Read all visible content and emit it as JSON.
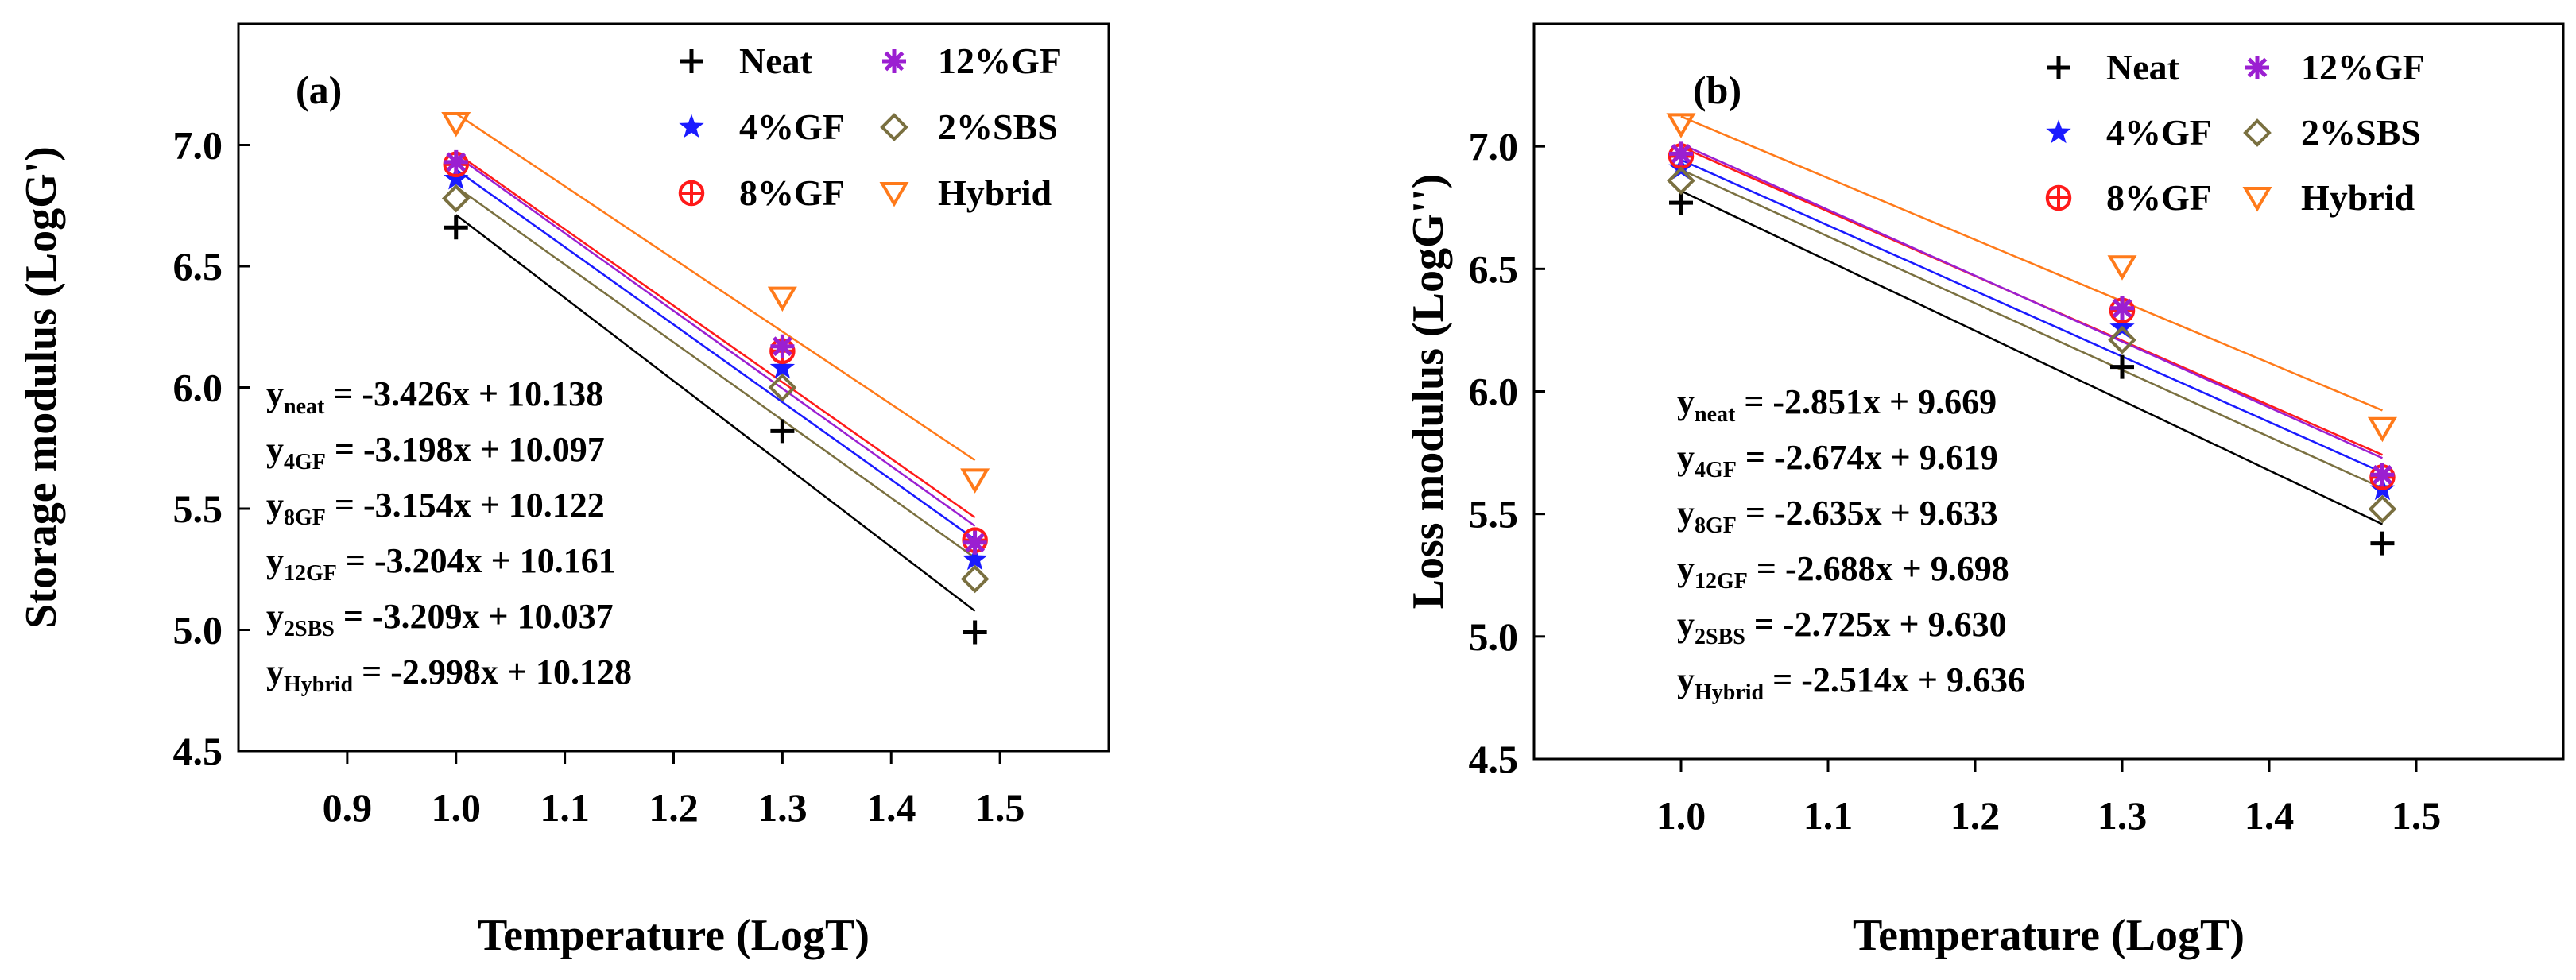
{
  "chart_data": [
    {
      "type": "scatter",
      "panel_label": "(a)",
      "xlabel": "Temperature (LogT)",
      "ylabel": "Storage modulus (LogG')",
      "xlim": [
        0.8,
        1.6
      ],
      "ylim": [
        4.5,
        7.5
      ],
      "xticks": [
        "0.9",
        "1.0",
        "1.1",
        "1.2",
        "1.3",
        "1.4",
        "1.5"
      ],
      "yticks": [
        "4.5",
        "5.0",
        "5.5",
        "6.0",
        "6.5",
        "7.0"
      ],
      "x": [
        1.0,
        1.3,
        1.477
      ],
      "legend_position": "top-right",
      "series": [
        {
          "name": "Neat",
          "marker": "plus",
          "color": "#000000",
          "line_color": "#000000",
          "values": [
            6.66,
            5.82,
            4.99
          ],
          "slope": -3.426,
          "intercept": 10.138
        },
        {
          "name": "4%GF",
          "marker": "star",
          "color": "#1a1aff",
          "line_color": "#1a1aff",
          "values": [
            6.86,
            6.08,
            5.29
          ],
          "slope": -3.198,
          "intercept": 10.097
        },
        {
          "name": "8%GF",
          "marker": "circle-plus",
          "color": "#ff1a1a",
          "line_color": "#ff1a1a",
          "values": [
            6.92,
            6.15,
            5.37
          ],
          "slope": -3.154,
          "intercept": 10.122
        },
        {
          "name": "12%GF",
          "marker": "asterisk",
          "color": "#9b1fd1",
          "line_color": "#9b1fd1",
          "values": [
            6.93,
            6.17,
            5.36
          ],
          "slope": -3.204,
          "intercept": 10.161
        },
        {
          "name": "2%SBS",
          "marker": "diamond",
          "color": "#7a7040",
          "line_color": "#7a7040",
          "values": [
            6.78,
            6.0,
            5.21
          ],
          "slope": -3.209,
          "intercept": 10.037
        },
        {
          "name": "Hybrid",
          "marker": "triangle-down",
          "color": "#ff7a1a",
          "line_color": "#ff7a1a",
          "values": [
            7.09,
            6.37,
            5.62
          ],
          "slope": -2.998,
          "intercept": 10.128
        }
      ],
      "equations": [
        {
          "prefix": "y",
          "sub": "neat",
          "text": " = -3.426x + 10.138"
        },
        {
          "prefix": "y",
          "sub": "4GF",
          "text": " = -3.198x + 10.097"
        },
        {
          "prefix": "y",
          "sub": "8GF",
          "text": " = -3.154x + 10.122"
        },
        {
          "prefix": "y",
          "sub": "12GF",
          "text": " = -3.204x + 10.161"
        },
        {
          "prefix": "y",
          "sub": "2SBS",
          "text": " = -3.209x + 10.037"
        },
        {
          "prefix": "y",
          "sub": "Hybrid",
          "text": " = -2.998x + 10.128"
        }
      ]
    },
    {
      "type": "scatter",
      "panel_label": "(b)",
      "xlabel": "Temperature (LogT)",
      "ylabel": "Loss modulus (LogG'')",
      "xlim": [
        0.9,
        1.6
      ],
      "ylim": [
        4.5,
        7.5
      ],
      "xticks": [
        "1.0",
        "1.1",
        "1.2",
        "1.3",
        "1.4",
        "1.5"
      ],
      "yticks": [
        "4.5",
        "5.0",
        "5.5",
        "6.0",
        "6.5",
        "7.0"
      ],
      "x": [
        1.0,
        1.3,
        1.477
      ],
      "legend_position": "top-right",
      "series": [
        {
          "name": "Neat",
          "marker": "plus",
          "color": "#000000",
          "line_color": "#000000",
          "values": [
            6.77,
            6.1,
            5.38
          ],
          "slope": -2.851,
          "intercept": 9.669
        },
        {
          "name": "4%GF",
          "marker": "star",
          "color": "#1a1aff",
          "line_color": "#1a1aff",
          "values": [
            6.91,
            6.26,
            5.6
          ],
          "slope": -2.674,
          "intercept": 9.619
        },
        {
          "name": "8%GF",
          "marker": "circle-plus",
          "color": "#ff1a1a",
          "line_color": "#ff1a1a",
          "values": [
            6.96,
            6.33,
            5.65
          ],
          "slope": -2.635,
          "intercept": 9.633
        },
        {
          "name": "12%GF",
          "marker": "asterisk",
          "color": "#9b1fd1",
          "line_color": "#9b1fd1",
          "values": [
            6.97,
            6.34,
            5.66
          ],
          "slope": -2.688,
          "intercept": 9.698
        },
        {
          "name": "2%SBS",
          "marker": "diamond",
          "color": "#7a7040",
          "line_color": "#7a7040",
          "values": [
            6.86,
            6.21,
            5.52
          ],
          "slope": -2.725,
          "intercept": 9.63
        },
        {
          "name": "Hybrid",
          "marker": "triangle-down",
          "color": "#ff7a1a",
          "line_color": "#ff7a1a",
          "values": [
            7.09,
            6.51,
            5.85
          ],
          "slope": -2.514,
          "intercept": 9.636
        }
      ],
      "equations": [
        {
          "prefix": "y",
          "sub": "neat",
          "text": " = -2.851x + 9.669"
        },
        {
          "prefix": "y",
          "sub": "4GF",
          "text": " = -2.674x + 9.619"
        },
        {
          "prefix": "y",
          "sub": "8GF",
          "text": " = -2.635x + 9.633"
        },
        {
          "prefix": "y",
          "sub": "12GF",
          "text": " = -2.688x + 9.698"
        },
        {
          "prefix": "y",
          "sub": "2SBS",
          "text": " = -2.725x + 9.630"
        },
        {
          "prefix": "y",
          "sub": "Hybrid",
          "text": " = -2.514x + 9.636"
        }
      ]
    }
  ]
}
